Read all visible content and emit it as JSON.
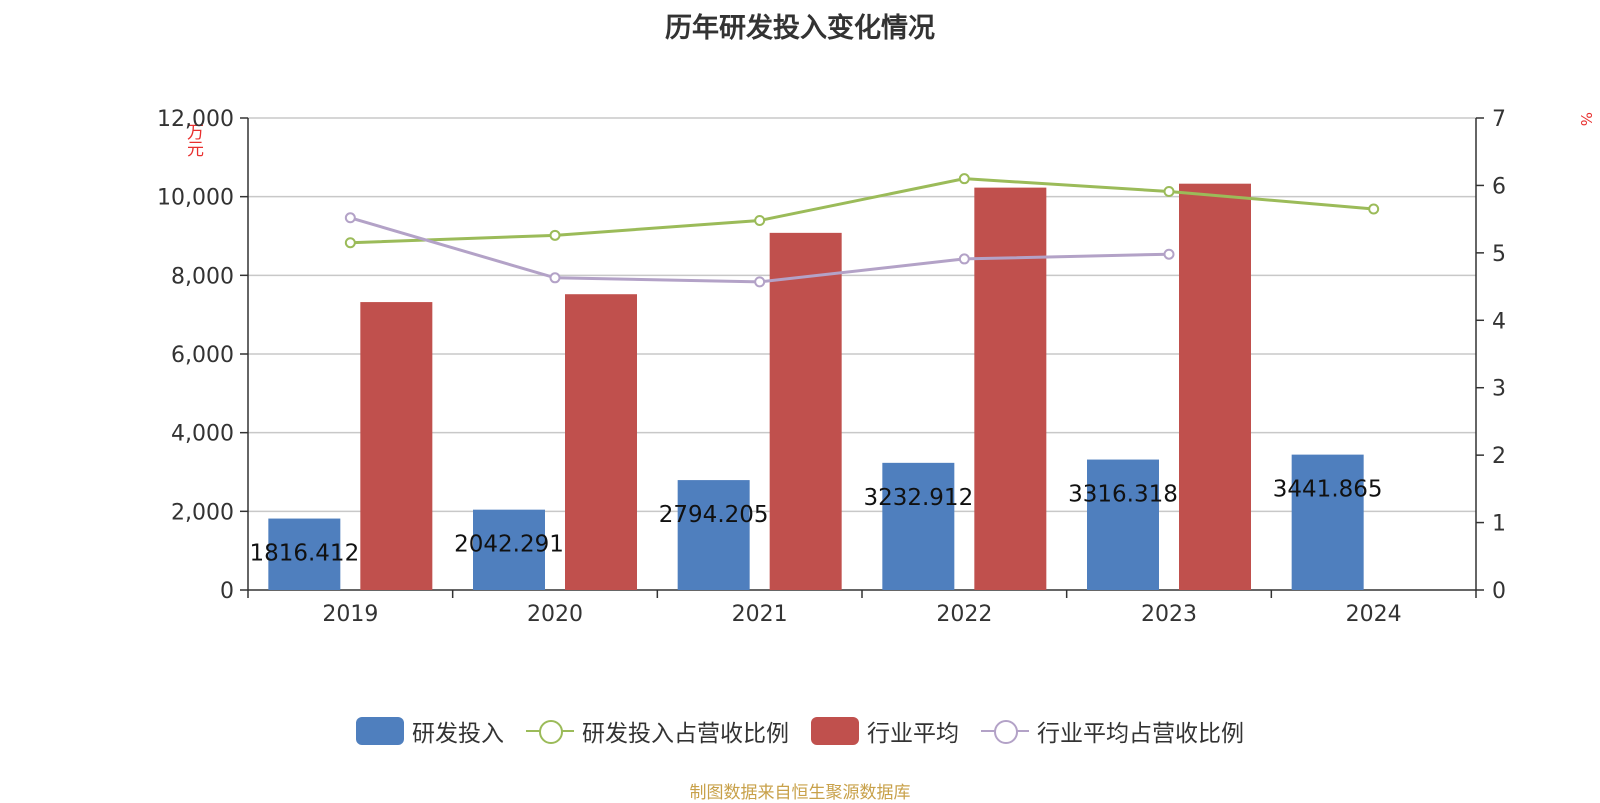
{
  "chart_data": {
    "type": "bar",
    "title": "历年研发投入变化情况",
    "left_unit": "万元",
    "right_unit": "%",
    "categories": [
      "2019",
      "2020",
      "2021",
      "2022",
      "2023",
      "2024"
    ],
    "left_axis": {
      "min": 0,
      "max": 12000,
      "ticks": [
        "0",
        "2,000",
        "4,000",
        "6,000",
        "8,000",
        "10,000",
        "12,000"
      ]
    },
    "right_axis": {
      "min": 0,
      "max": 7,
      "ticks": [
        "0",
        "1",
        "2",
        "3",
        "4",
        "5",
        "6",
        "7"
      ]
    },
    "bar_series": [
      {
        "name": "研发投入",
        "color": "#4f7fbe",
        "values": [
          1816.412,
          2042.291,
          2794.205,
          3232.912,
          3316.318,
          3441.865
        ],
        "labels": [
          "1816.412",
          "2042.291",
          "2794.205",
          "3232.912",
          "3316.318",
          "3441.865"
        ]
      },
      {
        "name": "行业平均",
        "color": "#c0504d",
        "values": [
          7320,
          7520,
          9080,
          10230,
          10330,
          null
        ]
      }
    ],
    "line_series": [
      {
        "name": "研发投入占营收比例",
        "color": "#9bbb59",
        "values": [
          5.15,
          5.26,
          5.48,
          6.1,
          5.91,
          5.65
        ]
      },
      {
        "name": "行业平均占营收比例",
        "color": "#b3a2c7",
        "values": [
          5.52,
          4.63,
          4.57,
          4.91,
          4.98,
          null
        ]
      }
    ],
    "grid": true,
    "legend_position": "bottom"
  },
  "source_text": "制图数据来自恒生聚源数据库"
}
